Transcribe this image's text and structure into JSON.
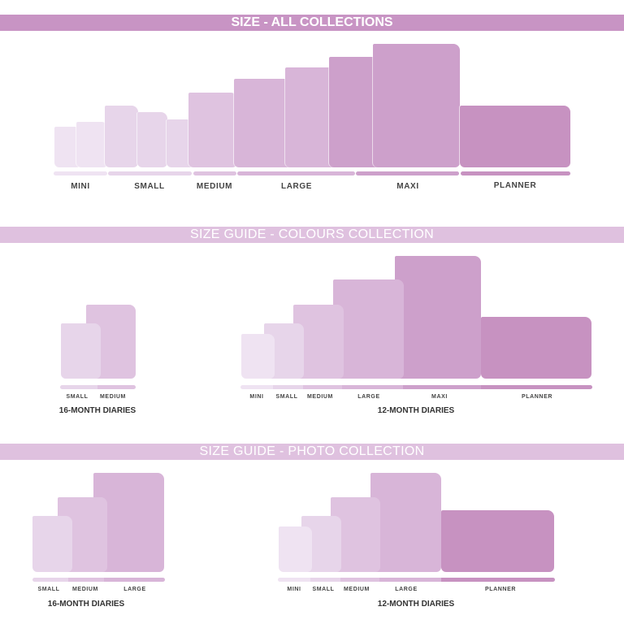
{
  "sections": [
    {
      "title": "SIZE - ALL COLLECTIONS",
      "labels": [
        "MINI",
        "SMALL",
        "MEDIUM",
        "LARGE",
        "MAXI",
        "PLANNER"
      ]
    },
    {
      "title": "SIZE GUIDE - COLOURS COLLECTION",
      "groups": [
        {
          "title": "16-MONTH DIARIES",
          "labels": [
            "SMALL",
            "MEDIUM"
          ]
        },
        {
          "title": "12-MONTH DIARIES",
          "labels": [
            "MINI",
            "SMALL",
            "MEDIUM",
            "LARGE",
            "MAXI",
            "PLANNER"
          ]
        }
      ]
    },
    {
      "title": "SIZE GUIDE - PHOTO COLLECTION",
      "groups": [
        {
          "title": "16-MONTH DIARIES",
          "labels": [
            "SMALL",
            "MEDIUM",
            "LARGE"
          ]
        },
        {
          "title": "12-MONTH DIARIES",
          "labels": [
            "MINI",
            "SMALL",
            "MEDIUM",
            "LARGE",
            "PLANNER"
          ]
        }
      ]
    }
  ],
  "colors": {
    "header_primary": "#c894c4",
    "header_secondary": "#dfc1df",
    "mini": "#efe3f2",
    "small": "#e7d5ea",
    "medium": "#dfc3e0",
    "large": "#d8b5d8",
    "maxi": "#cda0cb",
    "planner": "#c792c1"
  }
}
